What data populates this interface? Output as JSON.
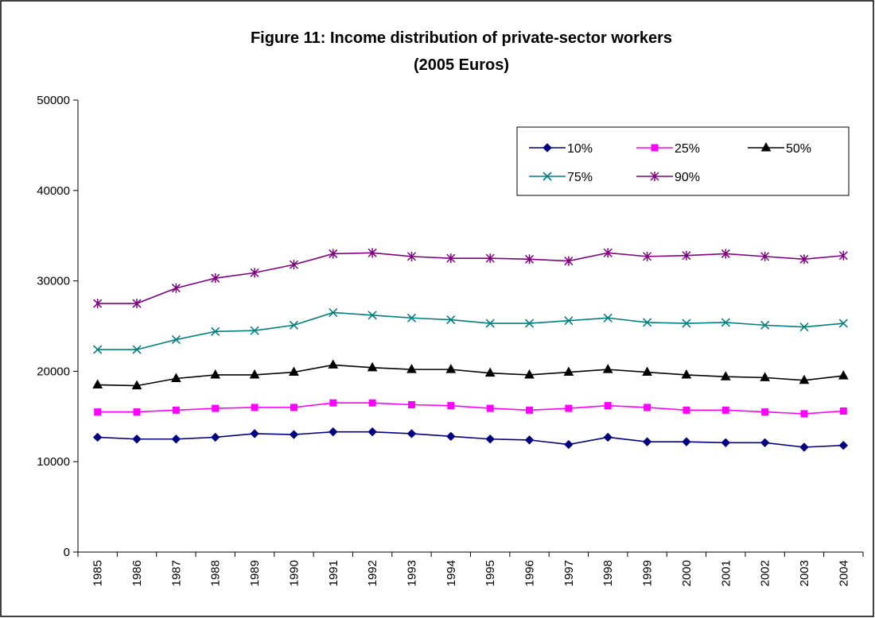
{
  "chart_data": {
    "type": "line",
    "title": "Figure 11: Income distribution of private-sector workers",
    "subtitle": "(2005 Euros)",
    "xlabel": "",
    "ylabel": "",
    "ylim": [
      0,
      50000
    ],
    "yticks": [
      0,
      10000,
      20000,
      30000,
      40000,
      50000
    ],
    "grid": false,
    "legend_position": "top-right",
    "categories": [
      "1985",
      "1986",
      "1987",
      "1988",
      "1989",
      "1990",
      "1991",
      "1992",
      "1993",
      "1994",
      "1995",
      "1996",
      "1997",
      "1998",
      "1999",
      "2000",
      "2001",
      "2002",
      "2003",
      "2004"
    ],
    "series": [
      {
        "name": "10%",
        "color": "#000080",
        "marker": "diamond",
        "values": [
          12700,
          12500,
          12500,
          12700,
          13100,
          13000,
          13300,
          13300,
          13100,
          12800,
          12500,
          12400,
          11900,
          12700,
          12200,
          12200,
          12100,
          12100,
          11600,
          11800
        ]
      },
      {
        "name": "25%",
        "color": "#ff00ff",
        "marker": "square",
        "values": [
          15500,
          15500,
          15700,
          15900,
          16000,
          16000,
          16500,
          16500,
          16300,
          16200,
          15900,
          15700,
          15900,
          16200,
          16000,
          15700,
          15700,
          15500,
          15300,
          15600
        ]
      },
      {
        "name": "50%",
        "color": "#000000",
        "marker": "triangle",
        "values": [
          18500,
          18400,
          19200,
          19600,
          19600,
          19900,
          20700,
          20400,
          20200,
          20200,
          19800,
          19600,
          19900,
          20200,
          19900,
          19600,
          19400,
          19300,
          19000,
          19500
        ]
      },
      {
        "name": "75%",
        "color": "#008080",
        "marker": "x",
        "values": [
          22400,
          22400,
          23500,
          24400,
          24500,
          25100,
          26500,
          26200,
          25900,
          25700,
          25300,
          25300,
          25600,
          25900,
          25400,
          25300,
          25400,
          25100,
          24900,
          25300
        ]
      },
      {
        "name": "90%",
        "color": "#800080",
        "marker": "star",
        "values": [
          27500,
          27500,
          29200,
          30300,
          30900,
          31800,
          33000,
          33100,
          32700,
          32500,
          32500,
          32400,
          32200,
          33100,
          32700,
          32800,
          33000,
          32700,
          32400,
          32800
        ]
      }
    ]
  }
}
